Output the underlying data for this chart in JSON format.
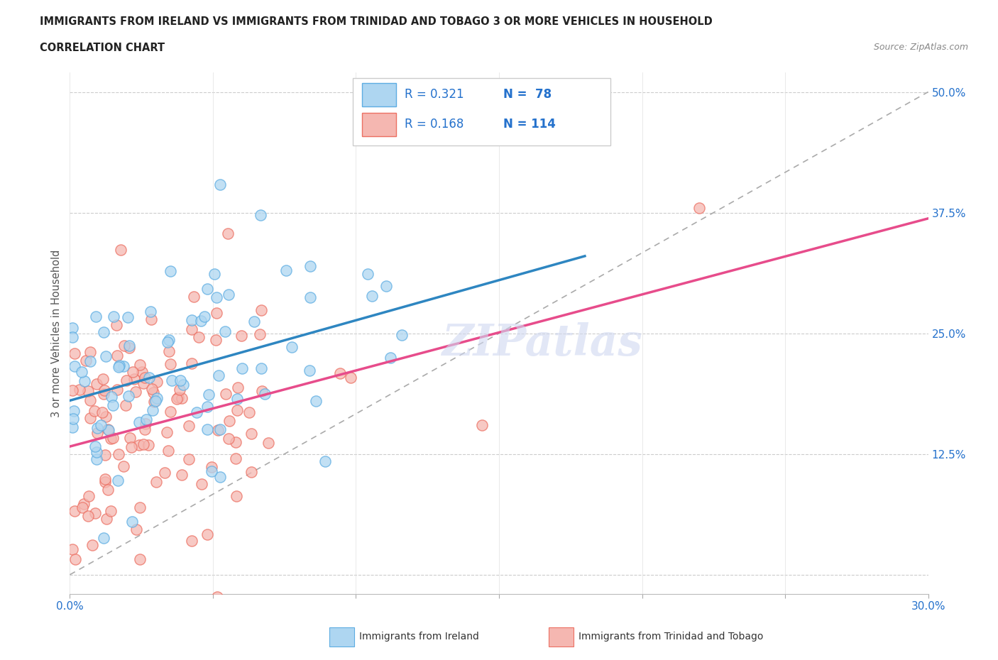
{
  "title_line1": "IMMIGRANTS FROM IRELAND VS IMMIGRANTS FROM TRINIDAD AND TOBAGO 3 OR MORE VEHICLES IN HOUSEHOLD",
  "title_line2": "CORRELATION CHART",
  "source_text": "Source: ZipAtlas.com",
  "ylabel": "3 or more Vehicles in Household",
  "xlim": [
    0.0,
    0.3
  ],
  "ylim": [
    -0.02,
    0.52
  ],
  "plot_ylim": [
    0.0,
    0.5
  ],
  "xticks": [
    0.0,
    0.05,
    0.1,
    0.15,
    0.2,
    0.25,
    0.3
  ],
  "xticklabels": [
    "0.0%",
    "",
    "",
    "",
    "",
    "",
    "30.0%"
  ],
  "yticks": [
    0.0,
    0.125,
    0.25,
    0.375,
    0.5
  ],
  "yticklabels": [
    "",
    "12.5%",
    "25.0%",
    "37.5%",
    "50.0%"
  ],
  "ireland_color": "#aed6f1",
  "trinidad_color": "#f5b7b1",
  "ireland_edge_color": "#5dade2",
  "trinidad_edge_color": "#ec7063",
  "trend_ireland_color": "#2e86c1",
  "trend_trinidad_color": "#e74c8b",
  "ref_line_color": "#aaaaaa",
  "ireland_R": 0.321,
  "ireland_N": 78,
  "trinidad_R": 0.168,
  "trinidad_N": 114,
  "watermark_text": "ZIPatlas",
  "legend_text_color": "#2c3e7a",
  "legend_R_color": "#2471cc",
  "legend_N_color": "#e05a0a",
  "tick_color": "#2471cc",
  "grid_color": "#cccccc",
  "ylabel_color": "#555555"
}
